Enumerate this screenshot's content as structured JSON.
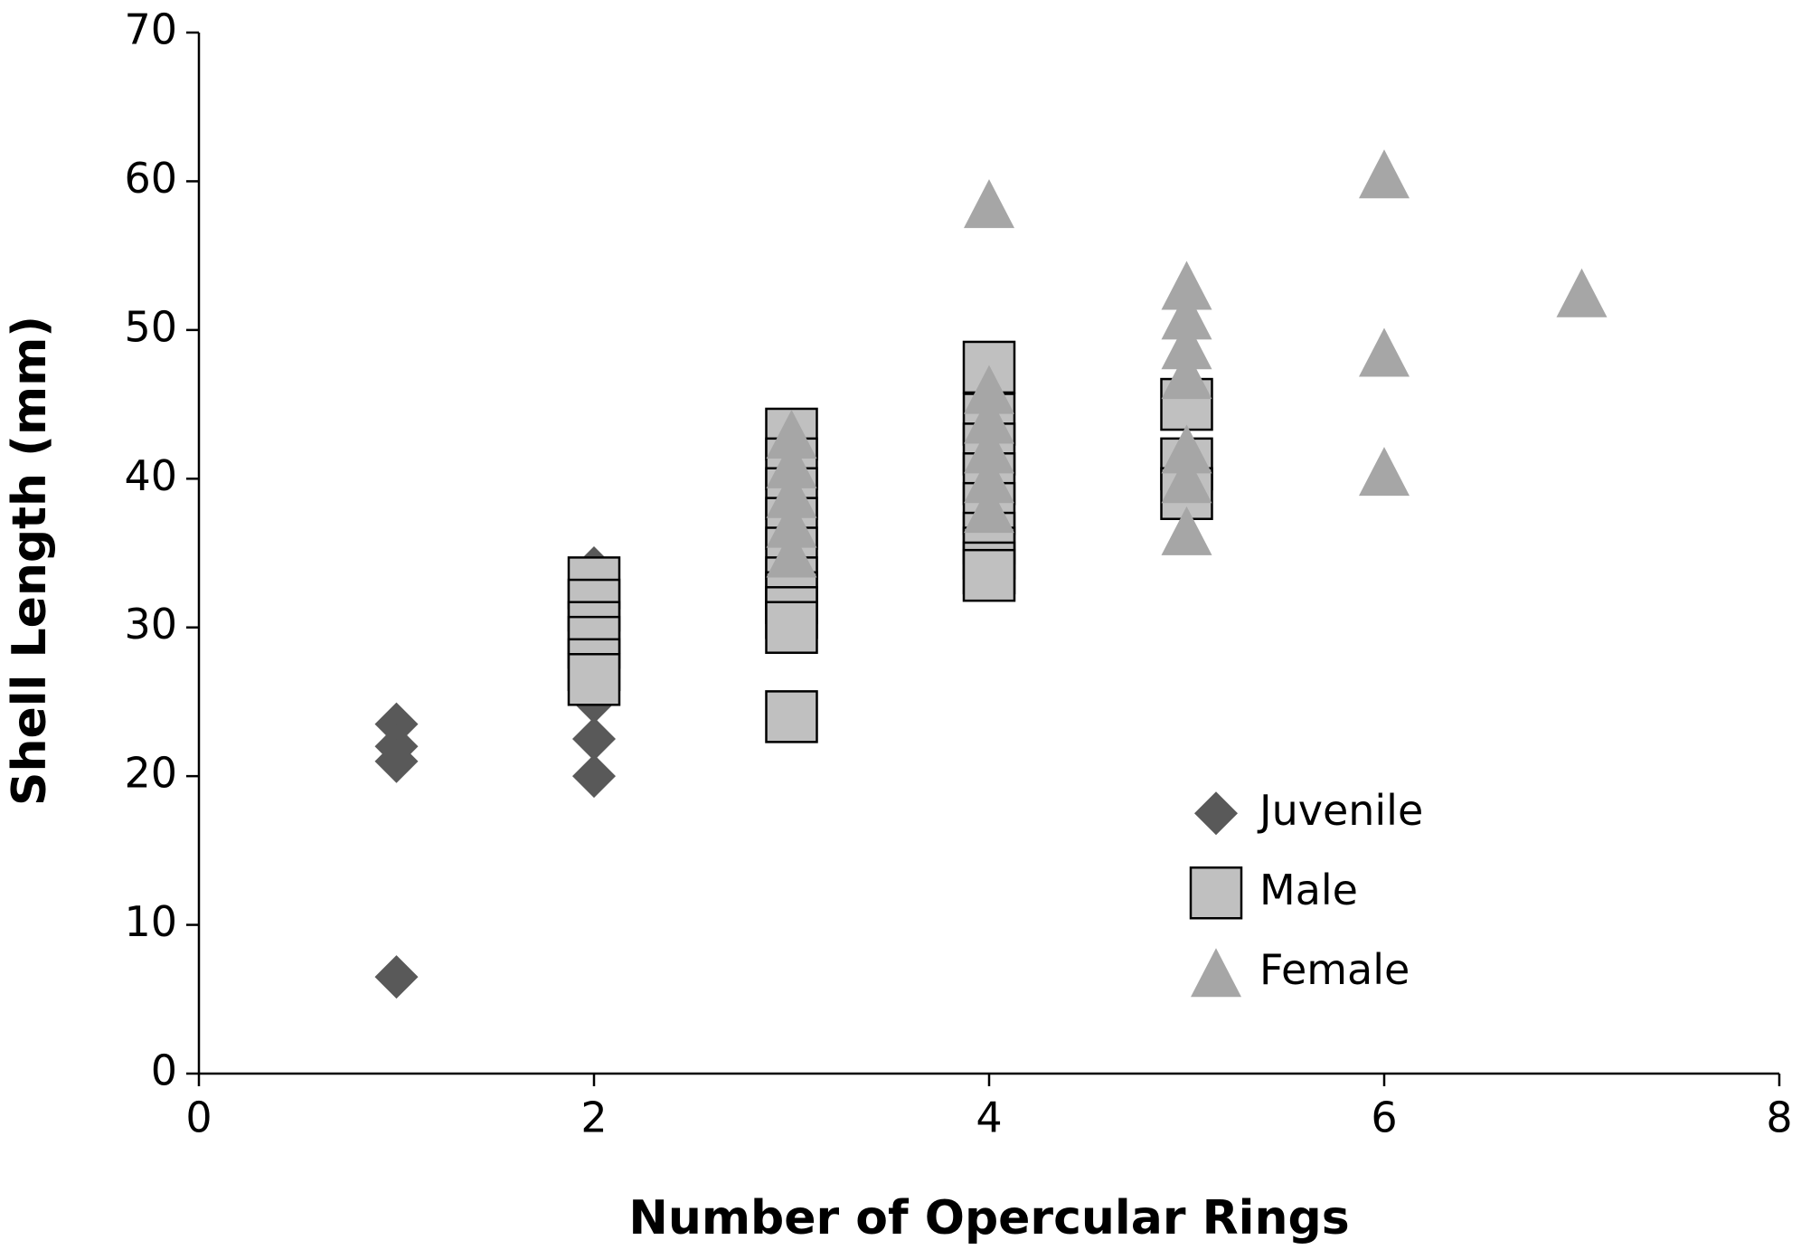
{
  "chart_data": {
    "type": "scatter",
    "x_label": "Number of Opercular Rings",
    "y_label": "Shell Length (mm)",
    "xlim": [
      0,
      8
    ],
    "xticks": [
      0,
      2,
      4,
      6,
      8
    ],
    "ylim": [
      0,
      70
    ],
    "yticks": [
      0,
      10,
      20,
      30,
      40,
      50,
      60,
      70
    ],
    "grid": false,
    "legend": "lower right",
    "series": [
      {
        "name": "Juvenile",
        "marker": "diamond",
        "color": "#595959",
        "x": [
          1,
          1,
          1,
          1,
          2,
          2,
          2,
          2,
          2,
          2,
          2,
          2,
          3,
          3,
          3,
          3,
          4,
          4,
          4
        ],
        "values": [
          23.5,
          22,
          21,
          6.5,
          34,
          32,
          30,
          28.5,
          26,
          25,
          22.5,
          20,
          36,
          33,
          31,
          30,
          35,
          38,
          41
        ]
      },
      {
        "name": "Male",
        "marker": "square",
        "color": "#c0c0c0",
        "x": [
          2,
          2,
          2,
          2,
          2,
          2,
          3,
          3,
          3,
          3,
          3,
          3,
          3,
          3,
          3,
          3,
          4,
          4,
          4,
          4,
          4,
          4,
          4,
          4,
          4,
          5,
          5,
          5
        ],
        "values": [
          33,
          31.5,
          30,
          29,
          27.5,
          26.5,
          43,
          41,
          39,
          37,
          35,
          33,
          32,
          31,
          30,
          24,
          47.5,
          44,
          42,
          40,
          38,
          36,
          35,
          34,
          33.5,
          45,
          41,
          39
        ]
      },
      {
        "name": "Female",
        "marker": "triangle",
        "color": "#a6a6a6",
        "x": [
          3,
          3,
          3,
          3,
          3,
          4,
          4,
          4,
          4,
          4,
          4,
          5,
          5,
          5,
          5,
          5,
          5,
          5,
          6,
          6,
          6,
          7
        ],
        "values": [
          43,
          41,
          39,
          37,
          35,
          58.5,
          46,
          44,
          42,
          40,
          38,
          53,
          51,
          49,
          47,
          42,
          40,
          36.5,
          60.5,
          48.5,
          40.5,
          52.5
        ]
      }
    ]
  }
}
